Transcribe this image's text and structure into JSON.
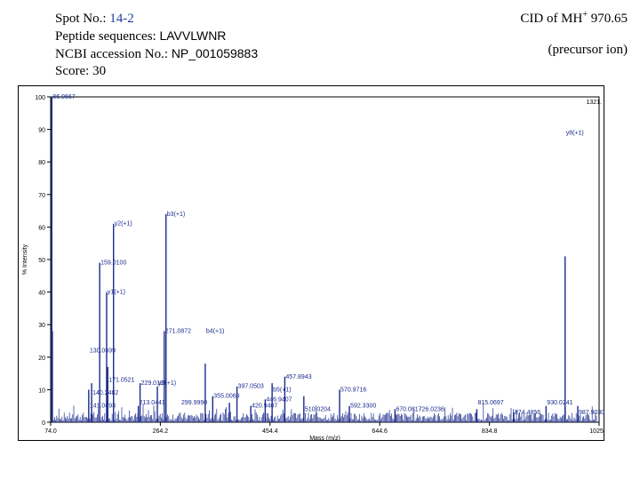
{
  "info": {
    "spot_label": "Spot No.: ",
    "spot_value": "14-2",
    "peptide_label": "Peptide sequences: ",
    "peptide_value": "LAVVLWNR",
    "ncbi_label": "NCBI accession No.: ",
    "ncbi_value": "NP_001059883",
    "score_label": "Score: 30"
  },
  "cid": {
    "prefix": "CID of MH",
    "sup": "+",
    "suffix": " 970.65",
    "note": "(precursor ion)"
  },
  "colors": {
    "peaks": "#1a2a8c",
    "accent": "#1f3f9f"
  },
  "chart_data": {
    "type": "bar",
    "xlabel": "Mass (m/z)",
    "ylabel": "% Intensity",
    "xlim": [
      74.0,
      1025.0
    ],
    "ylim": [
      0,
      100
    ],
    "x_ticks": [
      "74.0",
      "264.2",
      "454.4",
      "644.6",
      "834.8",
      "1025.0"
    ],
    "y_ticks": [
      0,
      10,
      20,
      30,
      40,
      50,
      60,
      70,
      80,
      90,
      100
    ],
    "corner_label": "1321.",
    "peaks": [
      {
        "x": 76,
        "y": 100
      },
      {
        "x": 77,
        "y": 28
      },
      {
        "x": 140,
        "y": 10
      },
      {
        "x": 145,
        "y": 12
      },
      {
        "x": 159,
        "y": 49
      },
      {
        "x": 171,
        "y": 40
      },
      {
        "x": 173,
        "y": 17
      },
      {
        "x": 183,
        "y": 61
      },
      {
        "x": 226,
        "y": 5
      },
      {
        "x": 229,
        "y": 12
      },
      {
        "x": 259,
        "y": 11
      },
      {
        "x": 271,
        "y": 28
      },
      {
        "x": 274,
        "y": 64
      },
      {
        "x": 342,
        "y": 18
      },
      {
        "x": 355,
        "y": 8
      },
      {
        "x": 384,
        "y": 6
      },
      {
        "x": 397,
        "y": 11
      },
      {
        "x": 421,
        "y": 5
      },
      {
        "x": 446,
        "y": 7
      },
      {
        "x": 458,
        "y": 12
      },
      {
        "x": 480,
        "y": 14
      },
      {
        "x": 513,
        "y": 8
      },
      {
        "x": 575,
        "y": 10
      },
      {
        "x": 592,
        "y": 5
      },
      {
        "x": 671,
        "y": 4
      },
      {
        "x": 813,
        "y": 4
      },
      {
        "x": 877,
        "y": 3
      },
      {
        "x": 933,
        "y": 5
      },
      {
        "x": 966,
        "y": 51
      },
      {
        "x": 988,
        "y": 5
      }
    ],
    "labels": [
      {
        "text": "86.0667",
        "x": 76,
        "y": 100
      },
      {
        "text": "y8(+1)",
        "x": 966,
        "y": 89
      },
      {
        "text": "y2(+1)",
        "x": 183,
        "y": 61
      },
      {
        "text": "b3(+1)",
        "x": 274,
        "y": 64
      },
      {
        "text": "159.0100",
        "x": 159,
        "y": 49
      },
      {
        "text": "y1(+1)",
        "x": 171,
        "y": 40
      },
      {
        "text": "271.0872",
        "x": 271,
        "y": 28
      },
      {
        "text": "b4(+1)",
        "x": 342,
        "y": 28
      },
      {
        "text": "130.0699",
        "x": 140,
        "y": 22
      },
      {
        "text": "171.0521",
        "x": 173,
        "y": 13
      },
      {
        "text": "229.0191",
        "x": 229,
        "y": 12
      },
      {
        "text": "y2(+1)",
        "x": 259,
        "y": 12
      },
      {
        "text": "397.0503",
        "x": 397,
        "y": 11
      },
      {
        "text": "457.8943",
        "x": 480,
        "y": 14
      },
      {
        "text": "b5(+1)",
        "x": 458,
        "y": 10
      },
      {
        "text": "570.9716",
        "x": 575,
        "y": 10
      },
      {
        "text": "140.2482",
        "x": 145,
        "y": 9
      },
      {
        "text": "355.0069",
        "x": 355,
        "y": 8
      },
      {
        "text": "446.9407",
        "x": 446,
        "y": 7
      },
      {
        "text": "213.0441",
        "x": 226,
        "y": 6
      },
      {
        "text": "299.9990",
        "x": 299,
        "y": 6
      },
      {
        "text": "141.0693",
        "x": 140,
        "y": 5
      },
      {
        "text": "420.9407",
        "x": 421,
        "y": 5
      },
      {
        "text": "592.3300",
        "x": 592,
        "y": 5
      },
      {
        "text": "510.0204",
        "x": 513,
        "y": 4
      },
      {
        "text": "670.0817",
        "x": 671,
        "y": 4
      },
      {
        "text": "726.0236",
        "x": 710,
        "y": 4
      },
      {
        "text": "815.0697",
        "x": 813,
        "y": 6
      },
      {
        "text": "930.0241",
        "x": 933,
        "y": 6
      },
      {
        "text": "874.4856",
        "x": 877,
        "y": 3
      },
      {
        "text": "987.9030",
        "x": 988,
        "y": 3
      }
    ]
  }
}
